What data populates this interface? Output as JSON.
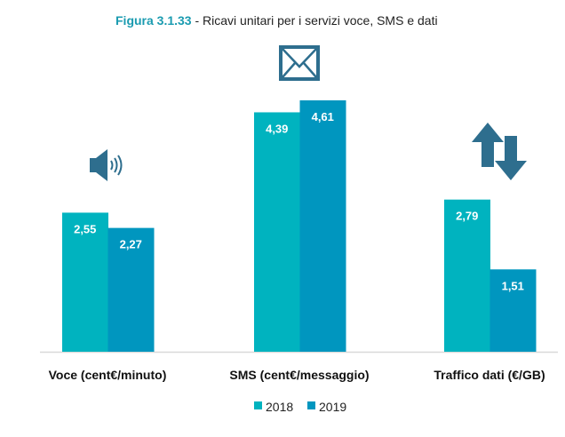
{
  "chart_data": {
    "type": "bar",
    "title_label": "Figura 3.1.33",
    "title_text": " - Ricavi unitari per i servizi voce, SMS e dati",
    "categories": [
      "Voce (cent€/minuto)",
      "SMS (cent€/messaggio)",
      "Traffico dati (€/GB)"
    ],
    "category_icons": [
      "speaker-icon",
      "envelope-icon",
      "up-down-arrows-icon"
    ],
    "series": [
      {
        "name": "2018",
        "color": "#00b3bf",
        "values": [
          2.55,
          4.39,
          2.79
        ],
        "labels": [
          "2,55",
          "4,39",
          "2,79"
        ]
      },
      {
        "name": "2019",
        "color": "#0096bf",
        "values": [
          2.27,
          4.61,
          1.51
        ],
        "labels": [
          "2,27",
          "4,61",
          "1,51"
        ]
      }
    ],
    "ylim": [
      0,
      6.45
    ],
    "grid": false,
    "legend": "bottom",
    "icon_color": "#2e6e8e"
  }
}
